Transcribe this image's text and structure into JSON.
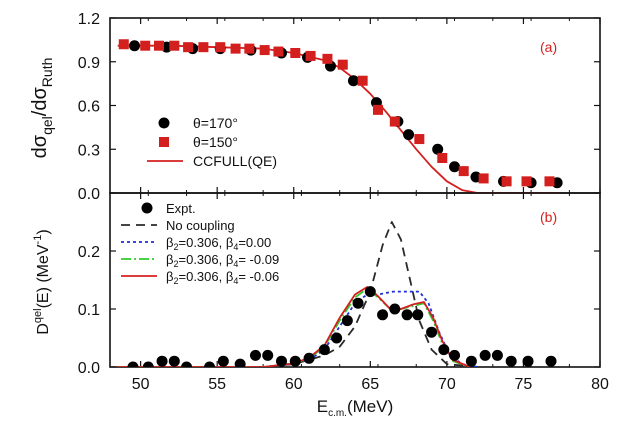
{
  "chart_data": [
    {
      "panel_label": "(a)",
      "type": "scatter",
      "ylabel": {
        "main": "dσ",
        "sub1": "qel",
        "mid": "/dσ",
        "sub2": "Ruth"
      },
      "xlim": [
        48,
        80
      ],
      "ylim": [
        0.0,
        1.2
      ],
      "xticks": [
        50,
        55,
        60,
        65,
        70,
        75,
        80
      ],
      "yticks": [
        "0.0",
        "0.3",
        "0.6",
        "0.9",
        "1.2"
      ],
      "grid": false,
      "legend_position": "bottom-left",
      "series": [
        {
          "name": "θ=170°",
          "kind": "circle",
          "color": "#000000",
          "points": [
            [
              49.6,
              1.01
            ],
            [
              51.7,
              1.0
            ],
            [
              53.4,
              0.99
            ],
            [
              55.2,
              0.99
            ],
            [
              57.2,
              0.98
            ],
            [
              59.2,
              0.96
            ],
            [
              60.9,
              0.93
            ],
            [
              62.4,
              0.87
            ],
            [
              63.9,
              0.77
            ],
            [
              65.4,
              0.62
            ],
            [
              66.8,
              0.49
            ],
            [
              67.5,
              0.4
            ],
            [
              69.4,
              0.3
            ],
            [
              70.5,
              0.18
            ],
            [
              71.9,
              0.11
            ],
            [
              73.7,
              0.08
            ],
            [
              75.5,
              0.07
            ],
            [
              77.2,
              0.07
            ]
          ]
        },
        {
          "name": "θ=150°",
          "kind": "square",
          "color": "#d41f1f",
          "points": [
            [
              48.9,
              1.02
            ],
            [
              50.3,
              1.01
            ],
            [
              51.2,
              1.01
            ],
            [
              52.2,
              1.01
            ],
            [
              53.1,
              1.0
            ],
            [
              54.1,
              1.0
            ],
            [
              55.2,
              1.0
            ],
            [
              56.2,
              0.99
            ],
            [
              57.1,
              0.99
            ],
            [
              58.1,
              0.98
            ],
            [
              59.0,
              0.97
            ],
            [
              60.1,
              0.96
            ],
            [
              61.1,
              0.94
            ],
            [
              62.2,
              0.92
            ],
            [
              63.2,
              0.88
            ],
            [
              64.5,
              0.77
            ],
            [
              65.5,
              0.57
            ],
            [
              66.6,
              0.49
            ],
            [
              68.2,
              0.37
            ],
            [
              69.7,
              0.24
            ],
            [
              71.1,
              0.15
            ],
            [
              72.4,
              0.1
            ],
            [
              73.9,
              0.08
            ],
            [
              75.2,
              0.08
            ],
            [
              76.7,
              0.08
            ]
          ]
        },
        {
          "name": "CCFULL(QE)",
          "kind": "line",
          "color": "#d41f1f",
          "dash": "",
          "points": [
            [
              48.5,
              1.01
            ],
            [
              52,
              1.01
            ],
            [
              55,
              1.0
            ],
            [
              58,
              0.99
            ],
            [
              60,
              0.96
            ],
            [
              62,
              0.91
            ],
            [
              63,
              0.86
            ],
            [
              64,
              0.78
            ],
            [
              65,
              0.68
            ],
            [
              66,
              0.56
            ],
            [
              67,
              0.43
            ],
            [
              68,
              0.3
            ],
            [
              69,
              0.18
            ],
            [
              70,
              0.08
            ],
            [
              71,
              0.02
            ],
            [
              72,
              0.0
            ],
            [
              77.5,
              0.0
            ]
          ]
        }
      ]
    },
    {
      "panel_label": "(b)",
      "type": "scatter",
      "ylabel": {
        "main": "D",
        "sup": "qel",
        "rest": "(E) (MeV",
        "sup2": "-1",
        "end": ")"
      },
      "xlabel": {
        "main": "E",
        "sub": "c.m.",
        "rest": "(MeV)"
      },
      "xlim": [
        48,
        80
      ],
      "ylim": [
        0.0,
        0.3
      ],
      "xticks": [
        50,
        55,
        60,
        65,
        70,
        75,
        80
      ],
      "yticks": [
        "0.0",
        "0.1",
        "0.2"
      ],
      "grid": false,
      "legend_position": "top-left",
      "series": [
        {
          "name": "Expt.",
          "kind": "circle",
          "color": "#000000",
          "points": [
            [
              49.5,
              0.0
            ],
            [
              50.5,
              0.0
            ],
            [
              51.4,
              0.01
            ],
            [
              52.2,
              0.01
            ],
            [
              53.0,
              0.0
            ],
            [
              54.5,
              0.0
            ],
            [
              55.4,
              0.01
            ],
            [
              56.5,
              0.005
            ],
            [
              57.5,
              0.02
            ],
            [
              58.3,
              0.02
            ],
            [
              59.2,
              0.01
            ],
            [
              60.1,
              0.01
            ],
            [
              61.0,
              0.015
            ],
            [
              62.0,
              0.03
            ],
            [
              62.8,
              0.05
            ],
            [
              63.5,
              0.08
            ],
            [
              64.2,
              0.11
            ],
            [
              65.0,
              0.13
            ],
            [
              65.8,
              0.09
            ],
            [
              66.6,
              0.1
            ],
            [
              67.4,
              0.09
            ],
            [
              68.1,
              0.09
            ],
            [
              69.0,
              0.06
            ],
            [
              69.8,
              0.03
            ],
            [
              70.5,
              0.02
            ],
            [
              71.6,
              0.01
            ],
            [
              72.5,
              0.02
            ],
            [
              73.3,
              0.02
            ],
            [
              74.2,
              0.01
            ],
            [
              75.3,
              0.01
            ],
            [
              76.8,
              0.01
            ]
          ]
        },
        {
          "name": "No coupling",
          "kind": "line",
          "color": "#2a2a2a",
          "dash": "9 6",
          "points": [
            [
              48.5,
              0.0
            ],
            [
              58,
              0.0
            ],
            [
              60,
              0.005
            ],
            [
              62,
              0.02
            ],
            [
              63,
              0.035
            ],
            [
              64,
              0.07
            ],
            [
              65,
              0.13
            ],
            [
              65.8,
              0.21
            ],
            [
              66.4,
              0.25
            ],
            [
              67.0,
              0.22
            ],
            [
              67.6,
              0.15
            ],
            [
              68.2,
              0.08
            ],
            [
              69,
              0.03
            ],
            [
              70,
              0.005
            ],
            [
              72,
              0.0
            ]
          ]
        },
        {
          "name": "β2=0.306, β4=0.00",
          "kind": "line",
          "color": "#1f2fd6",
          "dash": "3 3",
          "points": [
            [
              48.5,
              0.0
            ],
            [
              58,
              0.0
            ],
            [
              60,
              0.006
            ],
            [
              61,
              0.012
            ],
            [
              62,
              0.03
            ],
            [
              63,
              0.07
            ],
            [
              64,
              0.11
            ],
            [
              64.8,
              0.125
            ],
            [
              65.5,
              0.125
            ],
            [
              66.5,
              0.13
            ],
            [
              67.5,
              0.13
            ],
            [
              68.2,
              0.13
            ],
            [
              68.8,
              0.11
            ],
            [
              69.5,
              0.06
            ],
            [
              70.2,
              0.02
            ],
            [
              71,
              0.005
            ],
            [
              72,
              0.0
            ]
          ]
        },
        {
          "name": "β2=0.306, β4= -0.09",
          "kind": "line",
          "color": "#2ecc2e",
          "dash": "10 3 2 3",
          "points": [
            [
              48.5,
              0.0
            ],
            [
              58,
              0.0
            ],
            [
              60,
              0.006
            ],
            [
              61,
              0.015
            ],
            [
              62,
              0.035
            ],
            [
              63,
              0.08
            ],
            [
              64,
              0.12
            ],
            [
              64.8,
              0.135
            ],
            [
              65.5,
              0.12
            ],
            [
              66.3,
              0.1
            ],
            [
              67,
              0.1
            ],
            [
              67.8,
              0.105
            ],
            [
              68.5,
              0.11
            ],
            [
              69.1,
              0.08
            ],
            [
              69.7,
              0.04
            ],
            [
              70.4,
              0.01
            ],
            [
              71.5,
              0.0
            ]
          ]
        },
        {
          "name": "β2=0.306, β4= -0.06",
          "kind": "line",
          "color": "#d41f1f",
          "dash": "",
          "points": [
            [
              48.5,
              0.0
            ],
            [
              58,
              0.0
            ],
            [
              60,
              0.006
            ],
            [
              61,
              0.016
            ],
            [
              62,
              0.037
            ],
            [
              63,
              0.085
            ],
            [
              64,
              0.125
            ],
            [
              64.8,
              0.138
            ],
            [
              65.5,
              0.122
            ],
            [
              66.3,
              0.1
            ],
            [
              67,
              0.1
            ],
            [
              67.8,
              0.108
            ],
            [
              68.5,
              0.112
            ],
            [
              69.1,
              0.085
            ],
            [
              69.7,
              0.045
            ],
            [
              70.4,
              0.012
            ],
            [
              71.5,
              0.0
            ]
          ]
        }
      ],
      "legend": [
        {
          "kind": "circle",
          "color": "#000000",
          "text": "Expt."
        },
        {
          "kind": "line",
          "color": "#2a2a2a",
          "dash": "9 6",
          "text": "No coupling"
        },
        {
          "kind": "line",
          "color": "#1f2fd6",
          "dash": "3 3",
          "b2": "β",
          "b2sub": "2",
          "b2val": "=0.306, β",
          "b4sub": "4",
          "b4val": "=0.00"
        },
        {
          "kind": "line",
          "color": "#2ecc2e",
          "dash": "10 3 2 3",
          "b2": "β",
          "b2sub": "2",
          "b2val": "=0.306, β",
          "b4sub": "4",
          "b4val": "= -0.09"
        },
        {
          "kind": "line",
          "color": "#d41f1f",
          "dash": "",
          "b2": "β",
          "b2sub": "2",
          "b2val": "=0.306, β",
          "b4sub": "4",
          "b4val": "= -0.06"
        }
      ]
    }
  ]
}
